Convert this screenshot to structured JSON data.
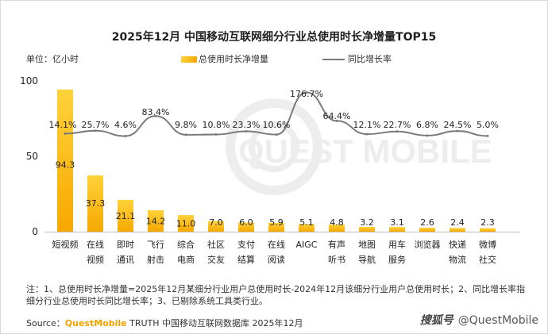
{
  "header": {
    "title": "2025年12月 中国移动互联网细分行业总使用时长净增量TOP15",
    "unit": "单位：亿小时"
  },
  "legend": {
    "bar_label": "总使用时长净增量",
    "line_label": "同比增长率"
  },
  "colors": {
    "bar_top": "#ffd23a",
    "bar_bottom": "#f7a800",
    "line": "#7a7a7a",
    "text": "#222222"
  },
  "chart_data": {
    "type": "bar",
    "categories": [
      [
        "短视频"
      ],
      [
        "在线",
        "视频"
      ],
      [
        "即时",
        "通讯"
      ],
      [
        "飞行",
        "射击"
      ],
      [
        "综合",
        "电商"
      ],
      [
        "社区",
        "交友"
      ],
      [
        "支付",
        "结算"
      ],
      [
        "在线",
        "阅读"
      ],
      [
        "AIGC"
      ],
      [
        "有声",
        "听书"
      ],
      [
        "地图",
        "导航"
      ],
      [
        "用车",
        "服务"
      ],
      [
        "浏览器"
      ],
      [
        "快递",
        "物流"
      ],
      [
        "微博",
        "社交"
      ]
    ],
    "series": [
      {
        "name": "总使用时长净增量",
        "type": "bar",
        "values": [
          94.3,
          37.3,
          21.1,
          14.2,
          11.0,
          7.0,
          6.0,
          5.9,
          5.1,
          4.8,
          3.2,
          3.1,
          2.6,
          2.4,
          2.3
        ],
        "labels": [
          "94.3",
          "37.3",
          "21.1",
          "14.2",
          "11.0",
          "7.0",
          "6.0",
          "5.9",
          "5.1",
          "4.8",
          "3.2",
          "3.1",
          "2.6",
          "2.4",
          "2.3"
        ]
      },
      {
        "name": "同比增长率",
        "type": "line",
        "values": [
          14.1,
          25.7,
          4.6,
          83.4,
          9.8,
          10.8,
          23.3,
          10.6,
          176.7,
          64.4,
          12.1,
          22.7,
          6.8,
          24.5,
          5.0
        ],
        "labels": [
          "14.1%",
          "25.7%",
          "4.6%",
          "83.4%",
          "9.8%",
          "10.8%",
          "23.3%",
          "10.6%",
          "176.7%",
          "64.4%",
          "12.1%",
          "22.7%",
          "6.8%",
          "24.5%",
          "5.0%"
        ]
      }
    ],
    "yticks": [
      "0",
      "50",
      "100"
    ],
    "ylim": [
      0,
      100
    ],
    "grid": false,
    "legend_position": "top"
  },
  "footer": {
    "note": "注：1、总使用时长净增量=2025年12月某细分行业用户总使用时长-2024年12月该细分行业用户总使用时长；2、同比增长率指细分行业总使用时长同比增长率；3、已剔除系统工具类行业。",
    "source_prefix": "Source：",
    "source_brand": "QuestMobile",
    "source_rest": " TRUTH 中国移动互联网数据库 2025年12月"
  },
  "watermark": {
    "logo": "搜狐号",
    "handle": "@QuestMobile"
  }
}
